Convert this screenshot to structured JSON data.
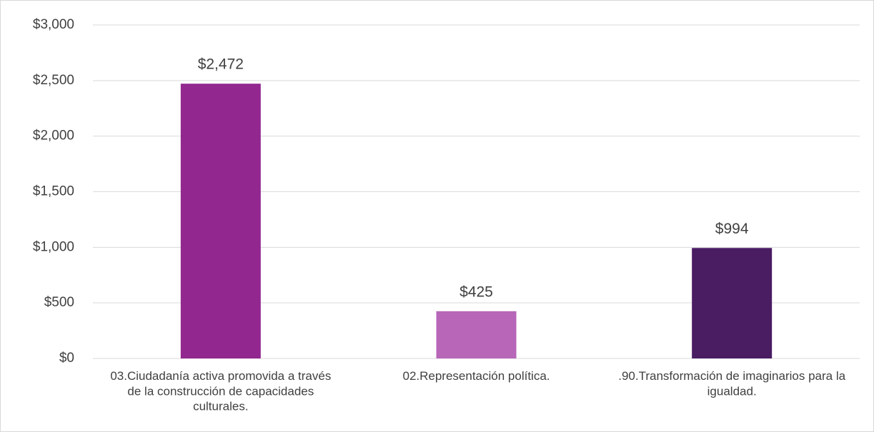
{
  "chart_data": {
    "type": "bar",
    "categories": [
      "03.Ciudadanía activa promovida a través de la construcción de capacidades culturales.",
      "02.Representación política.",
      ".90.Transformación de imaginarios para la igualdad."
    ],
    "values": [
      2472,
      425,
      994
    ],
    "value_labels": [
      "$2,472",
      "$425",
      "$994"
    ],
    "colors": [
      "#92278f",
      "#b766b8",
      "#4a1c62"
    ],
    "ylim": [
      0,
      3000
    ],
    "yticks": [
      {
        "value": 0,
        "label": "$0"
      },
      {
        "value": 500,
        "label": "$500"
      },
      {
        "value": 1000,
        "label": "$1,000"
      },
      {
        "value": 1500,
        "label": "$1,500"
      },
      {
        "value": 2000,
        "label": "$2,000"
      },
      {
        "value": 2500,
        "label": "$2,500"
      },
      {
        "value": 3000,
        "label": "$3,000"
      }
    ],
    "grid": true
  }
}
